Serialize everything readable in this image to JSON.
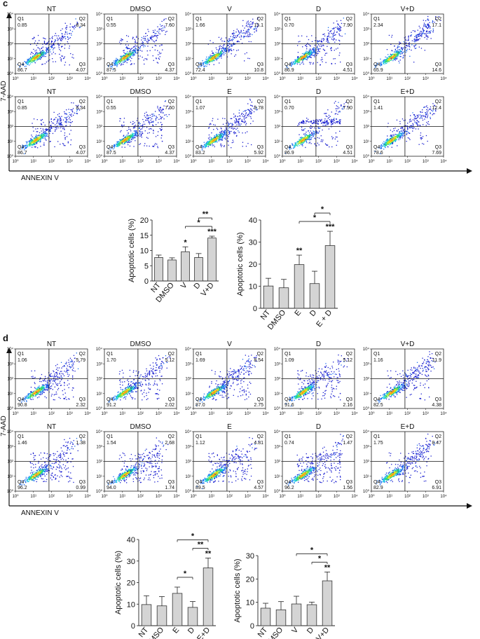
{
  "panels": [
    {
      "letter": "c",
      "ylabel": "7-AAD",
      "xlabel": "ANNEXIN V",
      "flow_rows": [
        [
          {
            "name": "NT",
            "q1": "0.85",
            "q2": "8.34",
            "q3": "4.07",
            "q4": "86.7"
          },
          {
            "name": "DMSO",
            "q1": "0.55",
            "q2": "7.60",
            "q3": "4.37",
            "q4": "87.5"
          },
          {
            "name": "V",
            "q1": "1.66",
            "q2": "15.1",
            "q3": "10.8",
            "q4": "72.4"
          },
          {
            "name": "D",
            "q1": "0.70",
            "q2": "7.90",
            "q3": "4.51",
            "q4": "86.9"
          },
          {
            "name": "V+D",
            "q1": "2.34",
            "q2": "17.1",
            "q3": "14.6",
            "q4": "65.9"
          }
        ],
        [
          {
            "name": "NT",
            "q1": "0.85",
            "q2": "8.34",
            "q3": "4.07",
            "q4": "86.7"
          },
          {
            "name": "DMSO",
            "q1": "0.55",
            "q2": "7.60",
            "q3": "4.37",
            "q4": "87.5"
          },
          {
            "name": "E",
            "q1": "1.07",
            "q2": "9.78",
            "q3": "5.92",
            "q4": "83.2"
          },
          {
            "name": "D",
            "q1": "0.70",
            "q2": "7.90",
            "q3": "4.51",
            "q4": "86.9"
          },
          {
            "name": "E+D",
            "q1": "1.41",
            "q2": "12.4",
            "q3": "7.69",
            "q4": "78.6"
          }
        ]
      ],
      "bar_charts": [
        {
          "ylabel": "Apoptotic cells (%)",
          "ylim": [
            0,
            20
          ],
          "yticks": [
            0,
            5,
            10,
            15,
            20
          ],
          "categories": [
            "NT",
            "DMSO",
            "V",
            "D",
            "V+D"
          ],
          "values": [
            7.7,
            6.9,
            9.6,
            7.7,
            14.1
          ],
          "errors": [
            0.8,
            0.7,
            1.6,
            1.3,
            0.6
          ],
          "stars": [
            "",
            "",
            "*",
            "",
            "***"
          ],
          "brackets": [
            {
              "from": 2,
              "to": 4,
              "label": "*",
              "level": 0
            },
            {
              "from": 3,
              "to": 4,
              "label": "**",
              "level": 1
            }
          ]
        },
        {
          "ylabel": "Apoptotic cells (%)",
          "ylim": [
            0,
            40
          ],
          "yticks": [
            0,
            10,
            20,
            30,
            40
          ],
          "categories": [
            "NT",
            "DMSO",
            "E",
            "D",
            "E + D"
          ],
          "values": [
            10.1,
            9.3,
            19.8,
            11.2,
            28.4
          ],
          "errors": [
            3.5,
            3.8,
            4.3,
            5.6,
            6.5
          ],
          "stars": [
            "",
            "",
            "**",
            "",
            "***"
          ],
          "brackets": [
            {
              "from": 2,
              "to": 4,
              "label": "*",
              "level": 0
            },
            {
              "from": 3,
              "to": 4,
              "label": "*",
              "level": 1
            }
          ]
        }
      ]
    },
    {
      "letter": "d",
      "ylabel": "7-AAD",
      "xlabel": "ANNEXIN V",
      "flow_rows": [
        [
          {
            "name": "NT",
            "q1": "1.06",
            "q2": "5.79",
            "q3": "2.32",
            "q4": "90.8"
          },
          {
            "name": "DMSO",
            "q1": "1.70",
            "q2": "5.12",
            "q3": "2.02",
            "q4": "91.2"
          },
          {
            "name": "V",
            "q1": "1.69",
            "q2": "8.54",
            "q3": "2.75",
            "q4": "87.0"
          },
          {
            "name": "D",
            "q1": "1.09",
            "q2": "5.12",
            "q3": "2.16",
            "q4": "91.6"
          },
          {
            "name": "V+D",
            "q1": "1.16",
            "q2": "11.9",
            "q3": "4.38",
            "q4": "82.5"
          }
        ],
        [
          {
            "name": "NT",
            "q1": "1.46",
            "q2": "1.38",
            "q3": "0.99",
            "q4": "96.2"
          },
          {
            "name": "DMSO",
            "q1": "1.54",
            "q2": "2.68",
            "q3": "1.74",
            "q4": "94.0"
          },
          {
            "name": "E",
            "q1": "1.12",
            "q2": "4.81",
            "q3": "4.57",
            "q4": "89.5"
          },
          {
            "name": "D",
            "q1": "0.74",
            "q2": "1.47",
            "q3": "1.56",
            "q4": "96.2"
          },
          {
            "name": "E+D",
            "q1": "1.75",
            "q2": "8.47",
            "q3": "6.91",
            "q4": "82.9"
          }
        ]
      ],
      "bar_charts": [
        {
          "ylabel": "Apoptotic cells (%)",
          "ylim": [
            0,
            40
          ],
          "yticks": [
            0,
            10,
            20,
            30,
            40
          ],
          "categories": [
            "NT",
            "DMSO",
            "E",
            "D",
            "E+D"
          ],
          "values": [
            9.8,
            9.2,
            15.0,
            8.5,
            26.8
          ],
          "errors": [
            4.1,
            4.3,
            2.9,
            2.7,
            4.6
          ],
          "stars": [
            "",
            "",
            "",
            "",
            "**"
          ],
          "brackets": [
            {
              "from": 2,
              "to": 3,
              "label": "*",
              "level": 0
            },
            {
              "from": 2,
              "to": 4,
              "label": "*",
              "level": 1
            },
            {
              "from": 3,
              "to": 4,
              "label": "**",
              "level": 0
            }
          ]
        },
        {
          "ylabel": "Apoptotic cells (%)",
          "ylim": [
            0,
            30
          ],
          "yticks": [
            0,
            10,
            20,
            30
          ],
          "categories": [
            "NT",
            "DMSO",
            "V",
            "D",
            "V+D"
          ],
          "values": [
            7.5,
            6.8,
            9.3,
            9.0,
            19.2
          ],
          "errors": [
            2.1,
            3.5,
            3.3,
            1.1,
            3.8
          ],
          "stars": [
            "",
            "",
            "",
            "",
            "**"
          ],
          "brackets": [
            {
              "from": 2,
              "to": 4,
              "label": "*",
              "level": 1
            },
            {
              "from": 3,
              "to": 4,
              "label": "*",
              "level": 0
            }
          ]
        }
      ]
    }
  ],
  "chart_data": [
    {
      "type": "bar",
      "title": "c (left)",
      "ylabel": "Apoptotic cells (%)",
      "categories": [
        "NT",
        "DMSO",
        "V",
        "D",
        "V+D"
      ],
      "values": [
        7.7,
        6.9,
        9.6,
        7.7,
        14.1
      ],
      "ylim": [
        0,
        20
      ]
    },
    {
      "type": "bar",
      "title": "c (right)",
      "ylabel": "Apoptotic cells (%)",
      "categories": [
        "NT",
        "DMSO",
        "E",
        "D",
        "E + D"
      ],
      "values": [
        10.1,
        9.3,
        19.8,
        11.2,
        28.4
      ],
      "ylim": [
        0,
        40
      ]
    },
    {
      "type": "bar",
      "title": "d (left)",
      "ylabel": "Apoptotic cells (%)",
      "categories": [
        "NT",
        "DMSO",
        "E",
        "D",
        "E+D"
      ],
      "values": [
        9.8,
        9.2,
        15.0,
        8.5,
        26.8
      ],
      "ylim": [
        0,
        40
      ]
    },
    {
      "type": "bar",
      "title": "d (right)",
      "ylabel": "Apoptotic cells (%)",
      "categories": [
        "NT",
        "DMSO",
        "V",
        "D",
        "V+D"
      ],
      "values": [
        7.5,
        6.8,
        9.3,
        9.0,
        19.2
      ],
      "ylim": [
        0,
        30
      ]
    }
  ],
  "axis_ticks": [
    "10⁰",
    "10¹",
    "10²",
    "10³",
    "10⁴"
  ],
  "quadrant_labels": [
    "Q1",
    "Q2",
    "Q3",
    "Q4"
  ],
  "colors": {
    "bar": "#d4d4d4",
    "axis": "#222222",
    "density_low": "#1a2dd6",
    "density_high": "#ffea00"
  }
}
